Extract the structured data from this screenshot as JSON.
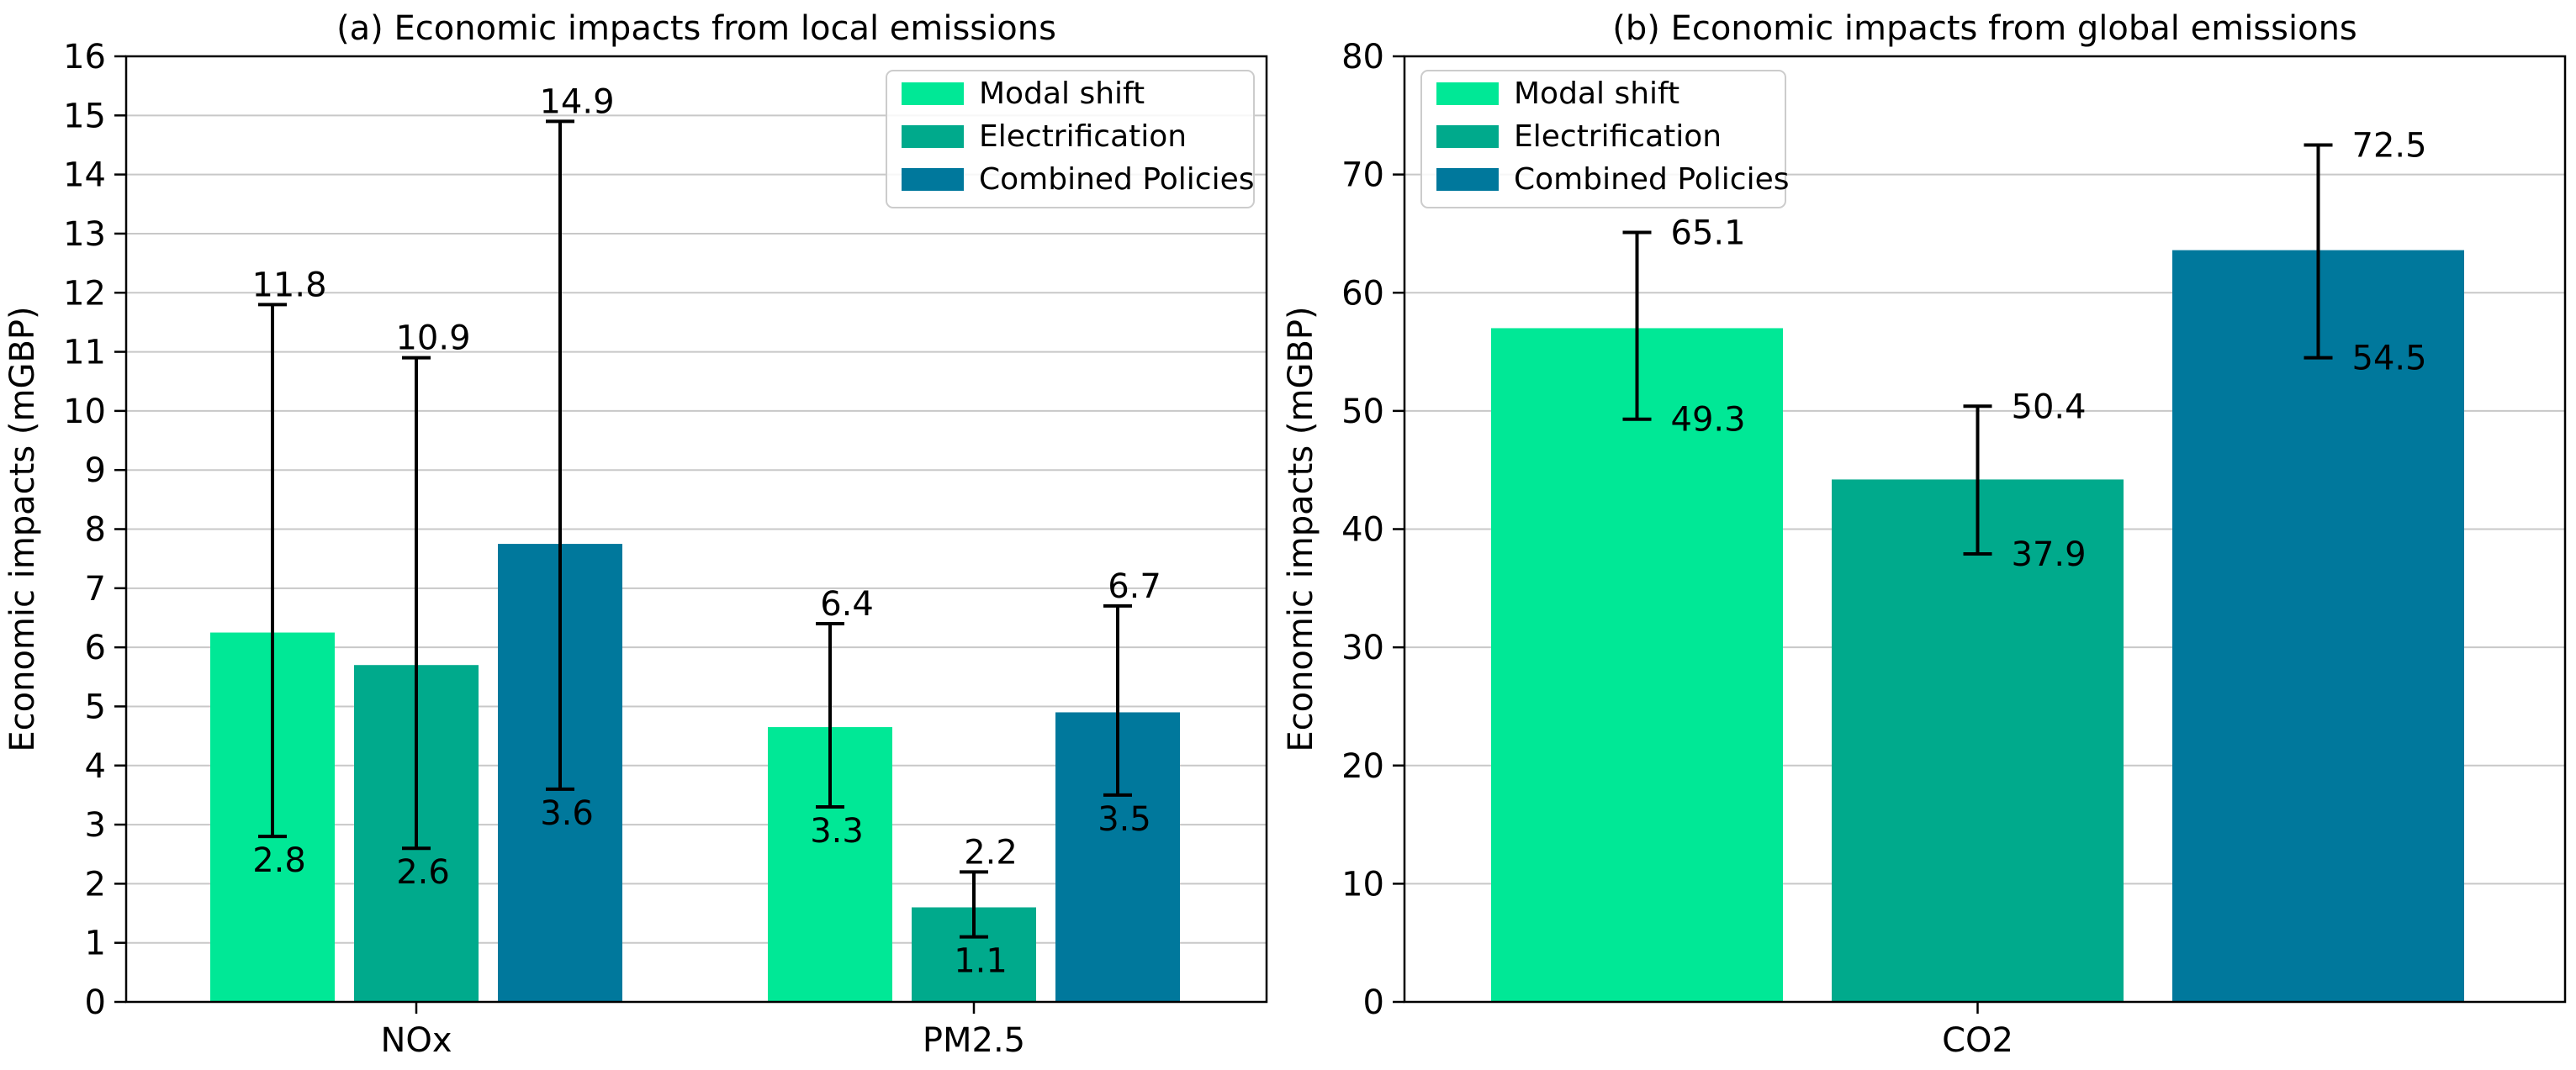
{
  "colors": {
    "Modal shift": "#00E896",
    "Electrification": "#00AA8C",
    "Combined Policies": "#00789C",
    "error_bar": "#000000",
    "grid": "#c8c8c8"
  },
  "chart_data": [
    {
      "type": "bar",
      "title": "(a) Economic impacts from local emissions",
      "xlabel": "",
      "ylabel": "Economic impacts (mGBP)",
      "ylim": [
        0,
        16
      ],
      "yticks": [
        0,
        1,
        2,
        3,
        4,
        5,
        6,
        7,
        8,
        9,
        10,
        11,
        12,
        13,
        14,
        15,
        16
      ],
      "grid": "horizontal",
      "legend_position": "top-right",
      "categories": [
        "NOx",
        "PM2.5"
      ],
      "series": [
        {
          "name": "Modal shift",
          "values": [
            6.25,
            4.65
          ],
          "err_low": [
            2.8,
            3.3
          ],
          "err_high": [
            11.8,
            6.4
          ],
          "label_low": [
            "2.8",
            "3.3"
          ],
          "label_high": [
            "11.8",
            "6.4"
          ]
        },
        {
          "name": "Electrification",
          "values": [
            5.7,
            1.6
          ],
          "err_low": [
            2.6,
            1.1
          ],
          "err_high": [
            10.9,
            2.2
          ],
          "label_low": [
            "2.6",
            "1.1"
          ],
          "label_high": [
            "10.9",
            "2.2"
          ]
        },
        {
          "name": "Combined Policies",
          "values": [
            7.75,
            4.9
          ],
          "err_low": [
            3.6,
            3.5
          ],
          "err_high": [
            14.9,
            6.7
          ],
          "label_low": [
            "3.6",
            "3.5"
          ],
          "label_high": [
            "14.9",
            "6.7"
          ]
        }
      ]
    },
    {
      "type": "bar",
      "title": "(b) Economic impacts from global emissions",
      "xlabel": "",
      "ylabel": "Economic impacts (mGBP)",
      "ylim": [
        0,
        80
      ],
      "yticks": [
        0,
        10,
        20,
        30,
        40,
        50,
        60,
        70,
        80
      ],
      "grid": "horizontal",
      "legend_position": "top-left",
      "categories": [
        "CO2"
      ],
      "series": [
        {
          "name": "Modal shift",
          "values": [
            57.0
          ],
          "err_low": [
            49.3
          ],
          "err_high": [
            65.1
          ],
          "label_low": [
            "49.3"
          ],
          "label_high": [
            "65.1"
          ]
        },
        {
          "name": "Electrification",
          "values": [
            44.2
          ],
          "err_low": [
            37.9
          ],
          "err_high": [
            50.4
          ],
          "label_low": [
            "37.9"
          ],
          "label_high": [
            "50.4"
          ]
        },
        {
          "name": "Combined Policies",
          "values": [
            63.6
          ],
          "err_low": [
            54.5
          ],
          "err_high": [
            72.5
          ],
          "label_low": [
            "54.5"
          ],
          "label_high": [
            "72.5"
          ]
        }
      ]
    }
  ]
}
